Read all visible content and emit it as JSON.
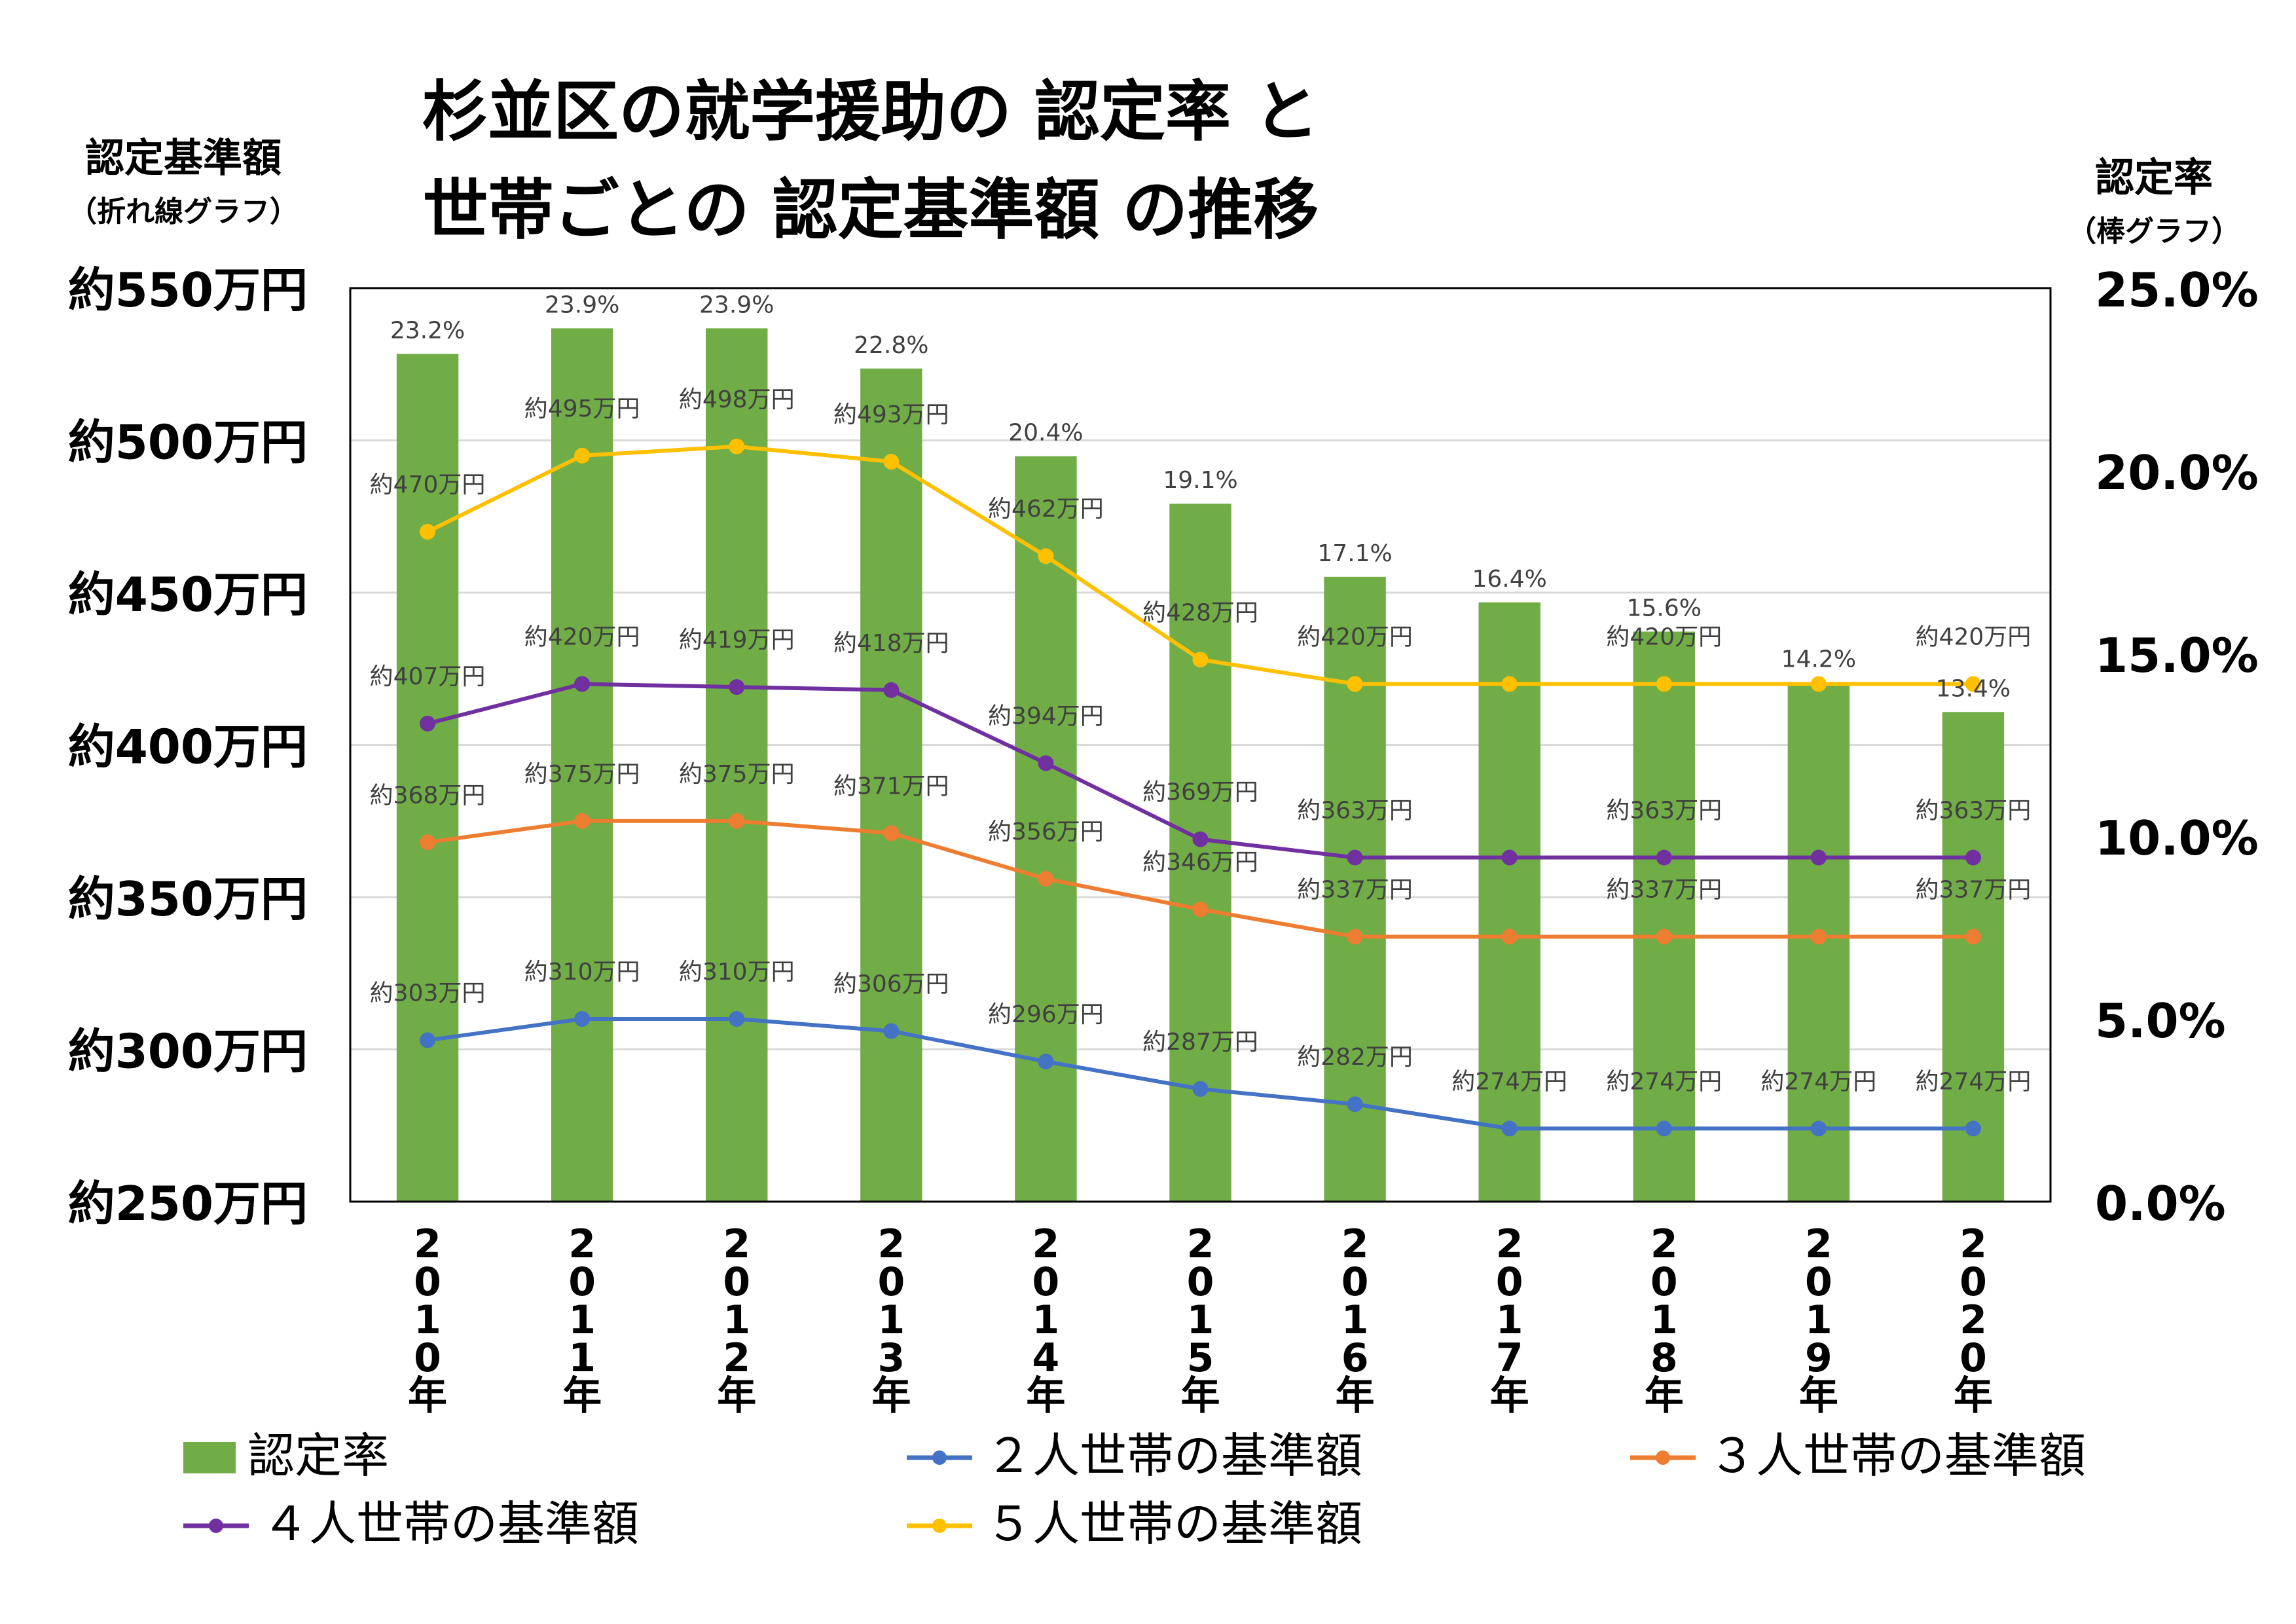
{
  "title_line1": "杉並区の就学援助の 認定率 と",
  "title_line2": "世帯ごとの 認定基準額 の推移",
  "left_axis": {
    "label": "認定基準額",
    "sublabel": "（折れ線グラフ）",
    "ticks": [
      "約550万円",
      "約500万円",
      "約450万円",
      "約400万円",
      "約350万円",
      "約300万円",
      "約250万円"
    ]
  },
  "right_axis": {
    "label": "認定率",
    "sublabel": "（棒グラフ）",
    "ticks": [
      "25.0%",
      "20.0%",
      "15.0%",
      "10.0%",
      "5.0%",
      "0.0%"
    ]
  },
  "chart_data": {
    "type": "bar+line",
    "categories": [
      "2010年",
      "2011年",
      "2012年",
      "2013年",
      "2014年",
      "2015年",
      "2016年",
      "2017年",
      "2018年",
      "2019年",
      "2020年"
    ],
    "y_left_range": [
      250,
      550
    ],
    "y_right_range": [
      0,
      25
    ],
    "grid": true,
    "legend_position": "bottom",
    "bars": {
      "name": "認定率",
      "color": "#70ad47",
      "values": [
        23.2,
        23.9,
        23.9,
        22.8,
        20.4,
        19.1,
        17.1,
        16.4,
        15.6,
        14.2,
        13.4
      ],
      "labels": [
        "23.2%",
        "23.9%",
        "23.9%",
        "22.8%",
        "20.4%",
        "19.1%",
        "17.1%",
        "16.4%",
        "15.6%",
        "14.2%",
        "13.4%"
      ]
    },
    "series": [
      {
        "name": "２人世帯の基準額",
        "color": "#4472c4",
        "values": [
          303,
          310,
          310,
          306,
          296,
          287,
          282,
          274,
          274,
          274,
          274
        ],
        "labels": [
          "約303万円",
          "約310万円",
          "約310万円",
          "約306万円",
          "約296万円",
          "約287万円",
          "約282万円",
          "約274万円",
          "約274万円",
          "約274万円",
          "約274万円"
        ]
      },
      {
        "name": "３人世帯の基準額",
        "color": "#ed7d31",
        "values": [
          368,
          375,
          375,
          371,
          356,
          346,
          337,
          337,
          337,
          337,
          337
        ],
        "labels": [
          "約368万円",
          "約375万円",
          "約375万円",
          "約371万円",
          "約356万円",
          "約346万円",
          "約337万円",
          "",
          "約337万円",
          "",
          "約337万円"
        ]
      },
      {
        "name": "４人世帯の基準額",
        "color": "#7030a0",
        "values": [
          407,
          420,
          419,
          418,
          394,
          369,
          363,
          363,
          363,
          363,
          363
        ],
        "labels": [
          "約407万円",
          "約420万円",
          "約419万円",
          "約418万円",
          "約394万円",
          "約369万円",
          "約363万円",
          "",
          "約363万円",
          "",
          "約363万円"
        ]
      },
      {
        "name": "５人世帯の基準額",
        "color": "#ffc000",
        "values": [
          470,
          495,
          498,
          493,
          462,
          428,
          420,
          420,
          420,
          420,
          420
        ],
        "labels": [
          "約470万円",
          "約495万円",
          "約498万円",
          "約493万円",
          "約462万円",
          "約428万円",
          "約420万円",
          "",
          "約420万円",
          "",
          "約420万円"
        ]
      }
    ]
  }
}
